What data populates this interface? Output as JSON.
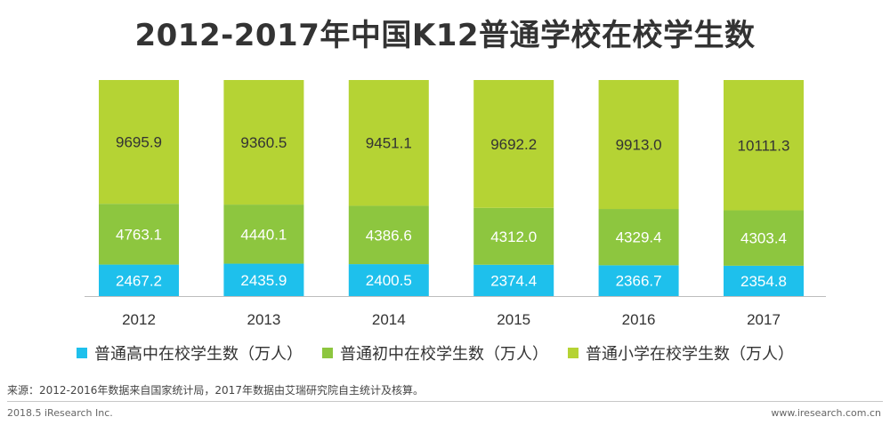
{
  "chart_data": {
    "type": "bar",
    "stacked": true,
    "title": "2012-2017年中国K12普通学校在校学生数",
    "categories": [
      "2012",
      "2013",
      "2014",
      "2015",
      "2016",
      "2017"
    ],
    "series": [
      {
        "name": "普通高中在校学生数（万人）",
        "color": "#1ec0ec",
        "values": [
          2467.2,
          2435.9,
          2400.5,
          2374.4,
          2366.7,
          2354.8
        ]
      },
      {
        "name": "普通初中在校学生数（万人）",
        "color": "#8dc63f",
        "values": [
          4763.1,
          4440.1,
          4386.6,
          4312.0,
          4329.4,
          4303.4
        ]
      },
      {
        "name": "普通小学在校学生数（万人）",
        "color": "#b5d334",
        "values": [
          9695.9,
          9360.5,
          9451.1,
          9692.2,
          9913.0,
          10111.3
        ]
      }
    ],
    "value_labels": [
      [
        "2467.2",
        "2435.9",
        "2400.5",
        "2374.4",
        "2366.7",
        "2354.8"
      ],
      [
        "4763.1",
        "4440.1",
        "4386.6",
        "4312.0",
        "4329.4",
        "4303.4"
      ],
      [
        "9695.9",
        "9360.5",
        "9451.1",
        "9692.2",
        "9913.0",
        "10111.3"
      ]
    ],
    "stack_mode": "percent",
    "legend_position": "bottom",
    "grid": false
  },
  "source_note": "来源：2012-2016年数据来自国家统计局，2017年数据由艾瑞研究院自主统计及核算。",
  "footer": {
    "left": "2018.5 iResearch Inc.",
    "right": "www.iresearch.com.cn"
  }
}
